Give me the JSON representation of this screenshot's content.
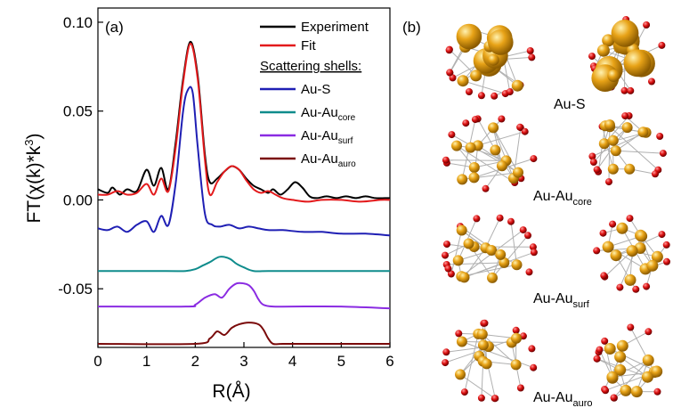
{
  "panel_a": {
    "label": "(a)",
    "chart_data": {
      "type": "line",
      "xlabel": "R(Å)",
      "ylabel": "FT(χ(k)*k³)",
      "ylabel_parts": {
        "a": "FT(",
        "chi": "χ",
        "b": "(k)*k",
        "sup": "3",
        "c": ")"
      },
      "xlim": [
        0,
        6
      ],
      "ylim": [
        -0.083,
        0.108
      ],
      "x_ticks": [
        0,
        1,
        2,
        3,
        4,
        5,
        6
      ],
      "y_ticks": [
        0.1,
        0.05,
        0.0,
        -0.05
      ],
      "y_tick_labels": [
        "0.10",
        "0.05",
        "0.00",
        "-0.05"
      ],
      "legend_header": "Scattering shells:",
      "legend_placement": "top-right",
      "series": [
        {
          "name": "Experiment",
          "color": "#000000",
          "x": [
            0,
            0.2,
            0.3,
            0.45,
            0.6,
            0.8,
            1.0,
            1.15,
            1.3,
            1.45,
            1.6,
            1.75,
            1.9,
            2.05,
            2.2,
            2.3,
            2.45,
            2.6,
            2.75,
            2.9,
            3.05,
            3.2,
            3.35,
            3.5,
            3.6,
            3.75,
            3.9,
            4.05,
            4.2,
            4.35,
            4.5,
            4.7,
            4.9,
            5.1,
            5.3,
            5.5,
            5.7,
            5.9,
            6.0
          ],
          "y": [
            0.006,
            0.004,
            0.007,
            0.003,
            0.006,
            0.005,
            0.017,
            0.008,
            0.018,
            0.006,
            0.033,
            0.068,
            0.089,
            0.07,
            0.025,
            0.01,
            0.012,
            0.016,
            0.019,
            0.017,
            0.012,
            0.008,
            0.006,
            0.004,
            0.006,
            0.003,
            0.006,
            0.01,
            0.007,
            0.002,
            0.001,
            0.002,
            0.001,
            0.002,
            0.001,
            0.002,
            0.001,
            0.001,
            0.001
          ]
        },
        {
          "name": "Fit",
          "color": "#e31a1c",
          "x": [
            0,
            0.2,
            0.4,
            0.6,
            0.8,
            1.0,
            1.15,
            1.3,
            1.45,
            1.6,
            1.75,
            1.9,
            2.05,
            2.2,
            2.3,
            2.45,
            2.6,
            2.75,
            2.9,
            3.05,
            3.2,
            3.35,
            3.5,
            3.65,
            3.8,
            4.0,
            4.3,
            4.6,
            5.0,
            5.4,
            5.8,
            6.0
          ],
          "y": [
            0.003,
            0.003,
            0.005,
            0.003,
            0.004,
            0.009,
            0.003,
            0.012,
            0.005,
            0.03,
            0.066,
            0.088,
            0.068,
            0.022,
            0.003,
            0.01,
            0.016,
            0.019,
            0.017,
            0.011,
            0.006,
            0.004,
            0.005,
            0.003,
            0.001,
            0.0,
            -0.001,
            0.0,
            0.0,
            -0.001,
            0.0,
            0.0
          ]
        },
        {
          "name": "Au-S",
          "color": "#1f1fb4",
          "x": [
            0,
            0.2,
            0.4,
            0.6,
            0.8,
            1.0,
            1.15,
            1.3,
            1.45,
            1.6,
            1.75,
            1.85,
            1.95,
            2.05,
            2.2,
            2.35,
            2.5,
            2.7,
            2.9,
            3.1,
            3.3,
            3.5,
            3.8,
            4.2,
            4.6,
            5.0,
            5.5,
            6.0
          ],
          "y": [
            -0.016,
            -0.017,
            -0.015,
            -0.018,
            -0.014,
            -0.012,
            -0.018,
            -0.009,
            -0.014,
            0.01,
            0.05,
            0.062,
            0.06,
            0.03,
            -0.008,
            -0.014,
            -0.015,
            -0.014,
            -0.016,
            -0.015,
            -0.016,
            -0.017,
            -0.017,
            -0.018,
            -0.018,
            -0.019,
            -0.019,
            -0.02
          ]
        },
        {
          "name": "Au-Au_core",
          "name_main": "Au-Au",
          "name_sub": "core",
          "color": "#0f8c8c",
          "x": [
            0,
            1.4,
            1.8,
            2.0,
            2.15,
            2.3,
            2.5,
            2.7,
            2.85,
            3.0,
            3.2,
            3.5,
            4.0,
            5.0,
            6.0
          ],
          "y": [
            -0.04,
            -0.04,
            -0.04,
            -0.039,
            -0.037,
            -0.035,
            -0.032,
            -0.033,
            -0.036,
            -0.038,
            -0.04,
            -0.04,
            -0.04,
            -0.04,
            -0.04
          ]
        },
        {
          "name": "Au-Au_surf",
          "name_main": "Au-Au",
          "name_sub": "surf",
          "color": "#8a2be2",
          "x": [
            0,
            1.8,
            2.0,
            2.2,
            2.4,
            2.55,
            2.7,
            2.85,
            3.0,
            3.1,
            3.2,
            3.3,
            3.4,
            3.6,
            4.0,
            5.0,
            6.0
          ],
          "y": [
            -0.06,
            -0.06,
            -0.059,
            -0.055,
            -0.053,
            -0.055,
            -0.05,
            -0.047,
            -0.047,
            -0.048,
            -0.051,
            -0.056,
            -0.059,
            -0.06,
            -0.06,
            -0.06,
            -0.061
          ]
        },
        {
          "name": "Au-Au_auro",
          "name_main": "Au-Au",
          "name_sub": "auro",
          "color": "#7a0a0a",
          "x": [
            0,
            2.0,
            2.3,
            2.45,
            2.6,
            2.75,
            2.9,
            3.1,
            3.3,
            3.4,
            3.5,
            3.6,
            3.8,
            4.5,
            6.0
          ],
          "y": [
            -0.081,
            -0.081,
            -0.078,
            -0.074,
            -0.076,
            -0.072,
            -0.07,
            -0.069,
            -0.07,
            -0.073,
            -0.078,
            -0.081,
            -0.081,
            -0.081,
            -0.081
          ]
        }
      ]
    }
  },
  "panel_b": {
    "label": "(b)",
    "rows": [
      {
        "main": "Au-S",
        "sub": ""
      },
      {
        "main": "Au-Au",
        "sub": "core"
      },
      {
        "main": "Au-Au",
        "sub": "surf"
      },
      {
        "main": "Au-Au",
        "sub": "auro"
      }
    ],
    "colors": {
      "gold_atom": "#e8a317",
      "sulfur_atom": "#dd1111",
      "bond": "#b0b0b0"
    }
  }
}
